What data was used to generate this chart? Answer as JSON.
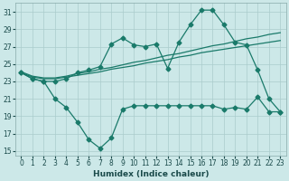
{
  "background_color": "#cce8e8",
  "grid_color": "#aacccc",
  "line_color": "#1a7a6a",
  "xlabel": "Humidex (Indice chaleur)",
  "xlim": [
    -0.5,
    23.5
  ],
  "ylim": [
    14.5,
    32
  ],
  "yticks": [
    15,
    17,
    19,
    21,
    23,
    25,
    27,
    29,
    31
  ],
  "xticks": [
    0,
    1,
    2,
    3,
    4,
    5,
    6,
    7,
    8,
    9,
    10,
    11,
    12,
    13,
    14,
    15,
    16,
    17,
    18,
    19,
    20,
    21,
    22,
    23
  ],
  "series": {
    "line1_x": [
      0,
      1,
      2,
      3,
      4,
      5,
      6,
      7,
      8,
      9,
      10,
      11,
      12,
      13,
      14,
      15,
      16,
      17,
      18,
      19,
      20,
      21,
      22,
      23
    ],
    "line1_y": [
      24.0,
      23.3,
      23.0,
      23.0,
      23.3,
      24.0,
      24.3,
      24.7,
      27.3,
      28.0,
      27.2,
      27.0,
      27.3,
      24.5,
      27.5,
      29.5,
      31.2,
      31.2,
      29.5,
      27.5,
      27.2,
      24.3,
      21.0,
      19.5
    ],
    "line2_x": [
      0,
      1,
      2,
      3,
      4,
      5,
      6,
      7,
      8,
      9,
      10,
      11,
      12,
      13,
      14,
      15,
      16,
      17,
      18,
      19,
      20,
      21,
      22,
      23
    ],
    "line2_y": [
      24.0,
      23.5,
      23.3,
      23.3,
      23.5,
      23.7,
      23.9,
      24.1,
      24.4,
      24.6,
      24.8,
      25.1,
      25.3,
      25.5,
      25.8,
      26.0,
      26.3,
      26.5,
      26.7,
      26.9,
      27.1,
      27.3,
      27.5,
      27.7
    ],
    "line3_x": [
      0,
      1,
      2,
      3,
      4,
      5,
      6,
      7,
      8,
      9,
      10,
      11,
      12,
      13,
      14,
      15,
      16,
      17,
      18,
      19,
      20,
      21,
      22,
      23
    ],
    "line3_y": [
      24.1,
      23.6,
      23.4,
      23.4,
      23.6,
      23.9,
      24.1,
      24.4,
      24.6,
      24.9,
      25.2,
      25.4,
      25.7,
      26.0,
      26.2,
      26.5,
      26.8,
      27.1,
      27.3,
      27.6,
      27.9,
      28.1,
      28.4,
      28.6
    ],
    "line4_x": [
      0,
      1,
      2,
      3,
      4,
      5,
      6,
      7,
      8,
      9,
      10,
      11,
      12,
      13,
      14,
      15,
      16,
      17,
      18,
      19,
      20,
      21,
      22,
      23
    ],
    "line4_y": [
      24.0,
      23.3,
      23.0,
      21.0,
      20.0,
      18.3,
      16.3,
      15.3,
      16.5,
      19.8,
      20.2,
      20.2,
      20.2,
      20.2,
      20.2,
      20.2,
      20.2,
      20.2,
      19.8,
      20.0,
      19.8,
      21.2,
      19.5,
      19.5
    ]
  }
}
